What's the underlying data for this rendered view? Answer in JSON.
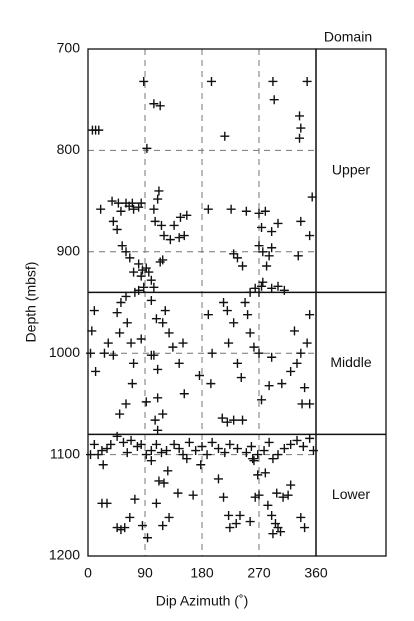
{
  "chart_data": {
    "type": "scatter",
    "x_label": "Dip Azimuth (˚)",
    "y_label": "Depth (mbsf)",
    "xlim": [
      0,
      360
    ],
    "xticks": [
      0,
      90,
      180,
      270,
      360
    ],
    "ylim": [
      700,
      1200
    ],
    "yticks": [
      700,
      800,
      900,
      1000,
      1100,
      1200
    ],
    "invert_y": true,
    "grid": true,
    "color": "#111111",
    "domain_title": "Domain",
    "domains": [
      {
        "label": "Upper",
        "range": [
          700,
          940
        ]
      },
      {
        "label": "Middle",
        "range": [
          940,
          1080
        ]
      },
      {
        "label": "Lower",
        "range": [
          1080,
          1200
        ]
      }
    ],
    "x": [
      7,
      12,
      17,
      88,
      104,
      114,
      195,
      216,
      292,
      294,
      346,
      334,
      336,
      334,
      93,
      20,
      38,
      48,
      52,
      60,
      65,
      70,
      72,
      80,
      84,
      40,
      46,
      54,
      60,
      66,
      72,
      80,
      86,
      92,
      96,
      100,
      104,
      88,
      80,
      74,
      84,
      110,
      112,
      106,
      116,
      120,
      130,
      136,
      144,
      152,
      156,
      146,
      104,
      114,
      118,
      190,
      226,
      250,
      270,
      274,
      280,
      270,
      276,
      282,
      286,
      290,
      230,
      236,
      244,
      264,
      270,
      274,
      276,
      290,
      300,
      310,
      332,
      336,
      354,
      350,
      300,
      290,
      256,
      10,
      6,
      4,
      12,
      26,
      32,
      40,
      52,
      60,
      46,
      62,
      50,
      68,
      84,
      72,
      70,
      60,
      50,
      92,
      100,
      108,
      118,
      122,
      128,
      134,
      100,
      104,
      110,
      144,
      150,
      152,
      176,
      190,
      196,
      194,
      214,
      220,
      230,
      222,
      236,
      242,
      212,
      220,
      230,
      248,
      252,
      256,
      262,
      270,
      290,
      274,
      286,
      306,
      320,
      330,
      346,
      336,
      342,
      338,
      350,
      350,
      326,
      110,
      106,
      118,
      110,
      244,
      4,
      10,
      16,
      22,
      30,
      36,
      46,
      56,
      62,
      68,
      78,
      84,
      92,
      100,
      108,
      116,
      124,
      136,
      144,
      150,
      160,
      170,
      180,
      188,
      196,
      206,
      216,
      224,
      236,
      250,
      258,
      262,
      268,
      278,
      286,
      292,
      300,
      310,
      320,
      330,
      340,
      350,
      356,
      24,
      30,
      22,
      46,
      52,
      58,
      66,
      74,
      86,
      94,
      108,
      112,
      120,
      118,
      128,
      100,
      126,
      142,
      156,
      166,
      178,
      206,
      214,
      222,
      234,
      224,
      240,
      256,
      268,
      264,
      270,
      284,
      290,
      296,
      300,
      304,
      292,
      298,
      308,
      316,
      320,
      336,
      342,
      280,
      260
    ],
    "values": [
      780,
      780,
      780,
      732,
      754,
      756,
      732,
      786,
      732,
      750,
      732,
      766,
      778,
      788,
      798,
      858,
      850,
      852,
      860,
      852,
      855,
      852,
      858,
      856,
      852,
      870,
      878,
      894,
      900,
      906,
      920,
      912,
      918,
      916,
      920,
      928,
      935,
      935,
      938,
      940,
      924,
      848,
      840,
      870,
      874,
      884,
      888,
      874,
      886,
      884,
      864,
      866,
      858,
      910,
      908,
      858,
      858,
      860,
      862,
      876,
      860,
      894,
      900,
      914,
      904,
      896,
      902,
      906,
      914,
      936,
      940,
      934,
      930,
      936,
      934,
      938,
      904,
      870,
      846,
      884,
      872,
      880,
      940,
      958,
      978,
      1000,
      1018,
      1000,
      990,
      1002,
      950,
      944,
      960,
      970,
      980,
      990,
      986,
      1010,
      1030,
      1050,
      1060,
      1048,
      948,
      966,
      970,
      958,
      980,
      994,
      1002,
      1002,
      1016,
      1010,
      990,
      1040,
      1022,
      962,
      1000,
      1030,
      950,
      958,
      970,
      990,
      1010,
      1024,
      1064,
      1068,
      1066,
      950,
      962,
      980,
      994,
      1000,
      1004,
      1046,
      1032,
      1030,
      1018,
      1010,
      990,
      1000,
      1034,
      1050,
      1050,
      962,
      978,
      1076,
      1066,
      1060,
      1044,
      1066,
      1100,
      1090,
      1100,
      1096,
      1094,
      1090,
      1082,
      1088,
      1098,
      1086,
      1092,
      1090,
      1100,
      1096,
      1090,
      1098,
      1096,
      1090,
      1094,
      1100,
      1088,
      1096,
      1092,
      1100,
      1088,
      1094,
      1098,
      1090,
      1094,
      1098,
      1092,
      1106,
      1100,
      1096,
      1088,
      1104,
      1100,
      1094,
      1090,
      1086,
      1092,
      1084,
      1096,
      1110,
      1148,
      1148,
      1172,
      1174,
      1172,
      1162,
      1144,
      1170,
      1182,
      1148,
      1126,
      1128,
      1170,
      1162,
      1106,
      1116,
      1138,
      1104,
      1140,
      1110,
      1124,
      1142,
      1160,
      1168,
      1172,
      1160,
      1166,
      1120,
      1142,
      1140,
      1150,
      1160,
      1168,
      1172,
      1176,
      1178,
      1138,
      1142,
      1140,
      1130,
      1162,
      1172,
      1118,
      1104
    ]
  }
}
